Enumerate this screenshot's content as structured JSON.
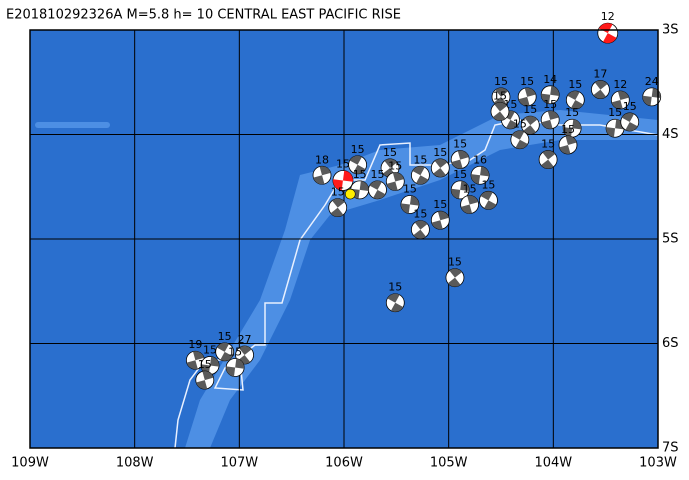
{
  "map": {
    "title": "E201810292326A  M=5.8  h= 10  CENTRAL EAST PACIFIC RISE",
    "lon_range": [
      -109,
      -103
    ],
    "lat_range": [
      -3,
      -7
    ],
    "lon_ticks": [
      {
        "value": -109,
        "label": "109W"
      },
      {
        "value": -108,
        "label": "108W"
      },
      {
        "value": -107,
        "label": "107W"
      },
      {
        "value": -106,
        "label": "106W"
      },
      {
        "value": -105,
        "label": "105W"
      },
      {
        "value": -104,
        "label": "104W"
      },
      {
        "value": -103,
        "label": "103W"
      }
    ],
    "lat_ticks": [
      {
        "value": -3,
        "label": "3S"
      },
      {
        "value": -4,
        "label": "4S"
      },
      {
        "value": -5,
        "label": "5S"
      },
      {
        "value": -6,
        "label": "6S"
      },
      {
        "value": -7,
        "label": "7S"
      }
    ],
    "ball_color": "#5a5a5a",
    "main_color": "#ff1a1a",
    "epicenter": {
      "lon": -105.94,
      "lat": -4.57,
      "color": "#ffee00"
    },
    "events": [
      {
        "lon": -103.48,
        "lat": -3.03,
        "depth": 12,
        "main": true
      },
      {
        "lon": -104.5,
        "lat": -3.64,
        "depth": 15
      },
      {
        "lon": -104.25,
        "lat": -3.64,
        "depth": 15
      },
      {
        "lon": -104.03,
        "lat": -3.62,
        "depth": 14
      },
      {
        "lon": -103.79,
        "lat": -3.67,
        "depth": 15
      },
      {
        "lon": -103.55,
        "lat": -3.57,
        "depth": 17
      },
      {
        "lon": -103.36,
        "lat": -3.67,
        "depth": 12
      },
      {
        "lon": -103.06,
        "lat": -3.64,
        "depth": 24
      },
      {
        "lon": -104.41,
        "lat": -3.86,
        "depth": 15
      },
      {
        "lon": -104.22,
        "lat": -3.91,
        "depth": 15
      },
      {
        "lon": -104.03,
        "lat": -3.86,
        "depth": 15
      },
      {
        "lon": -103.82,
        "lat": -3.94,
        "depth": 15
      },
      {
        "lon": -104.32,
        "lat": -4.05,
        "depth": 15
      },
      {
        "lon": -104.05,
        "lat": -4.24,
        "depth": 15
      },
      {
        "lon": -103.86,
        "lat": -4.1,
        "depth": 15
      },
      {
        "lon": -103.41,
        "lat": -3.94,
        "depth": 15
      },
      {
        "lon": -103.27,
        "lat": -3.88,
        "depth": 15
      },
      {
        "lon": -104.51,
        "lat": -3.78,
        "depth": 15
      },
      {
        "lon": -106.21,
        "lat": -4.39,
        "depth": 18
      },
      {
        "lon": -106.01,
        "lat": -4.44,
        "depth": 15,
        "main": true
      },
      {
        "lon": -105.87,
        "lat": -4.29,
        "depth": 15
      },
      {
        "lon": -105.56,
        "lat": -4.32,
        "depth": 15
      },
      {
        "lon": -105.51,
        "lat": -4.45,
        "depth": 15
      },
      {
        "lon": -105.37,
        "lat": -4.67,
        "depth": 15
      },
      {
        "lon": -105.27,
        "lat": -4.39,
        "depth": 15
      },
      {
        "lon": -105.08,
        "lat": -4.32,
        "depth": 15
      },
      {
        "lon": -104.89,
        "lat": -4.24,
        "depth": 15
      },
      {
        "lon": -104.7,
        "lat": -4.39,
        "depth": 16
      },
      {
        "lon": -104.62,
        "lat": -4.63,
        "depth": 15
      },
      {
        "lon": -105.27,
        "lat": -4.91,
        "depth": 15
      },
      {
        "lon": -105.08,
        "lat": -4.82,
        "depth": 15
      },
      {
        "lon": -104.89,
        "lat": -4.53,
        "depth": 15
      },
      {
        "lon": -105.68,
        "lat": -4.53,
        "depth": 15
      },
      {
        "lon": -106.06,
        "lat": -4.7,
        "depth": 15
      },
      {
        "lon": -104.8,
        "lat": -4.67,
        "depth": 15
      },
      {
        "lon": -105.85,
        "lat": -4.53,
        "depth": 15
      },
      {
        "lon": -105.51,
        "lat": -5.61,
        "depth": 15
      },
      {
        "lon": -104.94,
        "lat": -5.37,
        "depth": 15
      },
      {
        "lon": -107.42,
        "lat": -6.16,
        "depth": 19
      },
      {
        "lon": -107.28,
        "lat": -6.21,
        "depth": 15
      },
      {
        "lon": -107.14,
        "lat": -6.08,
        "depth": 15
      },
      {
        "lon": -106.95,
        "lat": -6.11,
        "depth": 27
      },
      {
        "lon": -107.33,
        "lat": -6.35,
        "depth": 15
      },
      {
        "lon": -107.04,
        "lat": -6.23,
        "depth": 15
      }
    ]
  }
}
